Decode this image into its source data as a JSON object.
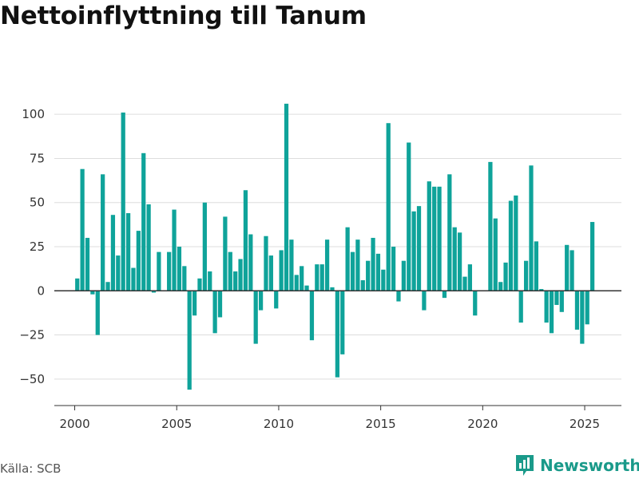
{
  "title": "Nettoinflyttning till Tanum",
  "source": "Källa: SCB",
  "brand": {
    "name": "Newsworthy",
    "icon": "newsworthy-logo-icon",
    "color": "#1a9a8a"
  },
  "colors": {
    "bar": "#0fa39a",
    "grid": "#dddddd",
    "zero": "#333333",
    "axis": "#333333"
  },
  "chart_data": {
    "type": "bar",
    "title": "Nettoinflyttning till Tanum",
    "xlabel": "",
    "ylabel": "",
    "ylim": [
      -65,
      115
    ],
    "xlim": [
      1999.0,
      2026.8
    ],
    "grid": true,
    "yticks": [
      -50,
      -25,
      0,
      25,
      50,
      75,
      100
    ],
    "ytick_labels": [
      "−50",
      "−25",
      "0",
      "25",
      "50",
      "75",
      "100"
    ],
    "xticks": [
      2000,
      2005,
      2010,
      2015,
      2020,
      2025
    ],
    "xtick_labels": [
      "2000",
      "2005",
      "2010",
      "2015",
      "2020",
      "2025"
    ],
    "period": "quarter",
    "x": [
      "2000K1",
      "2000K2",
      "2000K3",
      "2000K4",
      "2001K1",
      "2001K2",
      "2001K3",
      "2001K4",
      "2002K1",
      "2002K2",
      "2002K3",
      "2002K4",
      "2003K1",
      "2003K2",
      "2003K3",
      "2003K4",
      "2004K1",
      "2004K2",
      "2004K3",
      "2004K4",
      "2005K1",
      "2005K2",
      "2005K3",
      "2005K4",
      "2006K1",
      "2006K2",
      "2006K3",
      "2006K4",
      "2007K1",
      "2007K2",
      "2007K3",
      "2007K4",
      "2008K1",
      "2008K2",
      "2008K3",
      "2008K4",
      "2009K1",
      "2009K2",
      "2009K3",
      "2009K4",
      "2010K1",
      "2010K2",
      "2010K3",
      "2010K4",
      "2011K1",
      "2011K2",
      "2011K3",
      "2011K4",
      "2012K1",
      "2012K2",
      "2012K3",
      "2012K4",
      "2013K1",
      "2013K2",
      "2013K3",
      "2013K4",
      "2014K1",
      "2014K2",
      "2014K3",
      "2014K4",
      "2015K1",
      "2015K2",
      "2015K3",
      "2015K4",
      "2016K1",
      "2016K2",
      "2016K3",
      "2016K4",
      "2017K1",
      "2017K2",
      "2017K3",
      "2017K4",
      "2018K1",
      "2018K2",
      "2018K3",
      "2018K4",
      "2019K1",
      "2019K2",
      "2019K3",
      "2019K4",
      "2020K1",
      "2020K2",
      "2020K3",
      "2020K4",
      "2021K1",
      "2021K2",
      "2021K3",
      "2021K4",
      "2022K1",
      "2022K2",
      "2022K3",
      "2022K4",
      "2023K1",
      "2023K2",
      "2023K3",
      "2023K4",
      "2024K1",
      "2024K2",
      "2024K3",
      "2024K4",
      "2025K1",
      "2025K2"
    ],
    "values": [
      7,
      69,
      30,
      -2,
      -25,
      66,
      5,
      43,
      20,
      101,
      44,
      13,
      34,
      78,
      49,
      -1,
      22,
      0,
      22,
      46,
      25,
      14,
      -56,
      -14,
      7,
      50,
      11,
      -24,
      -15,
      42,
      22,
      11,
      18,
      57,
      32,
      -30,
      -11,
      31,
      20,
      -10,
      23,
      106,
      29,
      9,
      14,
      3,
      -28,
      15,
      15,
      29,
      2,
      -49,
      -36,
      36,
      22,
      29,
      6,
      17,
      30,
      21,
      12,
      95,
      25,
      -6,
      17,
      84,
      45,
      48,
      -11,
      62,
      59,
      59,
      -4,
      66,
      36,
      33,
      8,
      15,
      -14,
      0,
      0,
      73,
      41,
      5,
      16,
      51,
      54,
      -18,
      17,
      71,
      28,
      1,
      -18,
      -24,
      -8,
      -12,
      26,
      23,
      -22,
      -30,
      -19,
      39
    ]
  }
}
